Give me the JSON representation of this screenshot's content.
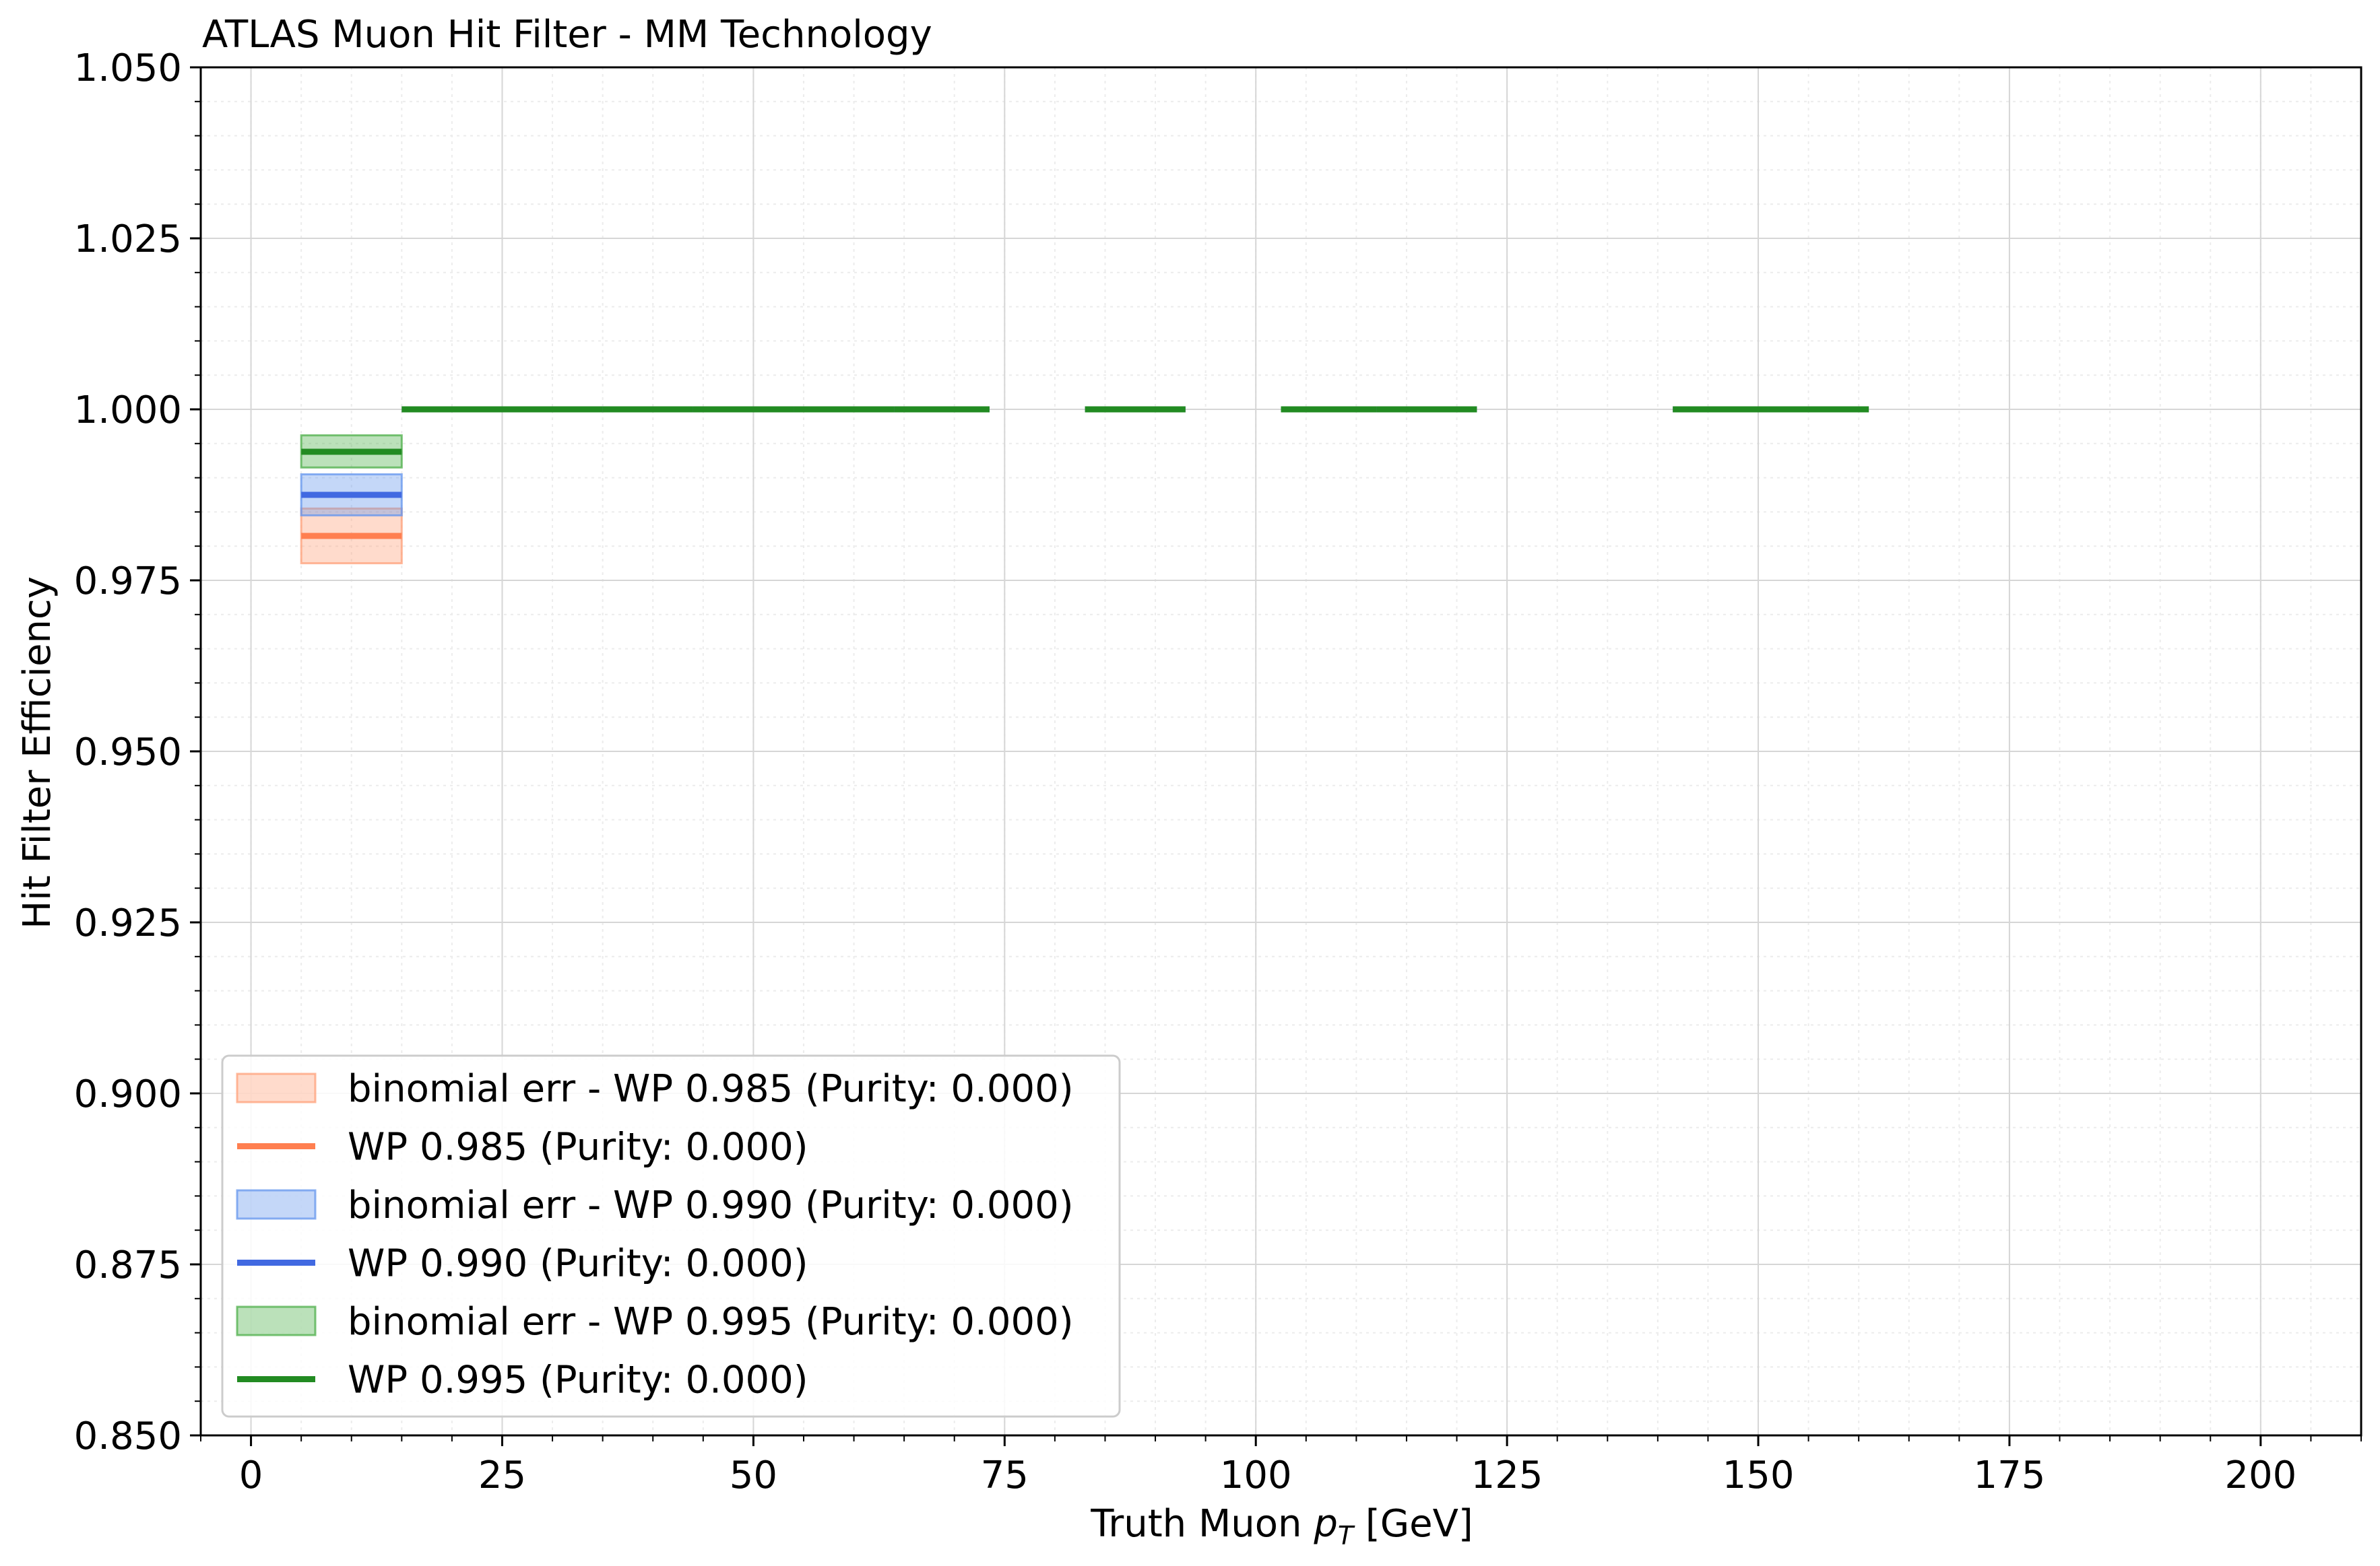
{
  "chart_data": {
    "type": "line",
    "title": "ATLAS Muon Hit Filter - MM Technology",
    "xlabel_main": "Truth Muon ",
    "xlabel_sym": "p",
    "xlabel_sub": "T",
    "xlabel_unit": " [GeV]",
    "ylabel": "Hit Filter Efficiency",
    "xlim": [
      -5,
      210
    ],
    "ylim": [
      0.85,
      1.05
    ],
    "grid": true,
    "legend_placement": "lower-left",
    "xticks": [
      0,
      25,
      50,
      75,
      100,
      125,
      150,
      175,
      200
    ],
    "xtick_labels": [
      "0",
      "25",
      "50",
      "75",
      "100",
      "125",
      "150",
      "175",
      "200"
    ],
    "yticks": [
      0.85,
      0.875,
      0.9,
      0.925,
      0.95,
      0.975,
      1.0,
      1.025,
      1.05
    ],
    "ytick_labels": [
      "0.850",
      "0.875",
      "0.900",
      "0.925",
      "0.950",
      "0.975",
      "1.000",
      "1.025",
      "1.050"
    ],
    "series": [
      {
        "name": "WP 0.985 (Purity: 0.000)",
        "band_name": "binomial err - WP 0.985 (Purity: 0.000)",
        "color": "#ff7f50",
        "band_color": "#ffa07a",
        "segments": [
          {
            "x0": 5,
            "x1": 15,
            "y": 0.9815,
            "err_lo": 0.9775,
            "err_hi": 0.9855
          },
          {
            "x0": 15,
            "x1": 25,
            "y": 1.0,
            "err_lo": 1.0,
            "err_hi": 1.0
          },
          {
            "x0": 25,
            "x1": 35,
            "y": 1.0,
            "err_lo": 1.0,
            "err_hi": 1.0
          },
          {
            "x0": 35,
            "x1": 44,
            "y": 1.0,
            "err_lo": 1.0,
            "err_hi": 1.0
          },
          {
            "x0": 44,
            "x1": 54,
            "y": 1.0,
            "err_lo": 1.0,
            "err_hi": 1.0
          },
          {
            "x0": 54,
            "x1": 64,
            "y": 1.0,
            "err_lo": 1.0,
            "err_hi": 1.0
          },
          {
            "x0": 64,
            "x1": 73.5,
            "y": 1.0,
            "err_lo": 1.0,
            "err_hi": 1.0
          },
          {
            "x0": 83,
            "x1": 93,
            "y": 1.0,
            "err_lo": 1.0,
            "err_hi": 1.0
          },
          {
            "x0": 102.5,
            "x1": 112,
            "y": 1.0,
            "err_lo": 1.0,
            "err_hi": 1.0
          },
          {
            "x0": 112,
            "x1": 122,
            "y": 1.0,
            "err_lo": 1.0,
            "err_hi": 1.0
          },
          {
            "x0": 141.5,
            "x1": 151,
            "y": 1.0,
            "err_lo": 1.0,
            "err_hi": 1.0
          },
          {
            "x0": 151,
            "x1": 161,
            "y": 1.0,
            "err_lo": 1.0,
            "err_hi": 1.0
          }
        ]
      },
      {
        "name": "WP 0.990 (Purity: 0.000)",
        "band_name": "binomial err - WP 0.990 (Purity: 0.000)",
        "color": "#4169e1",
        "band_color": "#6495ed",
        "segments": [
          {
            "x0": 5,
            "x1": 15,
            "y": 0.9875,
            "err_lo": 0.9845,
            "err_hi": 0.9905
          },
          {
            "x0": 15,
            "x1": 25,
            "y": 1.0,
            "err_lo": 1.0,
            "err_hi": 1.0
          },
          {
            "x0": 25,
            "x1": 35,
            "y": 1.0,
            "err_lo": 1.0,
            "err_hi": 1.0
          },
          {
            "x0": 35,
            "x1": 44,
            "y": 1.0,
            "err_lo": 1.0,
            "err_hi": 1.0
          },
          {
            "x0": 44,
            "x1": 54,
            "y": 1.0,
            "err_lo": 1.0,
            "err_hi": 1.0
          },
          {
            "x0": 54,
            "x1": 64,
            "y": 1.0,
            "err_lo": 1.0,
            "err_hi": 1.0
          },
          {
            "x0": 64,
            "x1": 73.5,
            "y": 1.0,
            "err_lo": 1.0,
            "err_hi": 1.0
          },
          {
            "x0": 83,
            "x1": 93,
            "y": 1.0,
            "err_lo": 1.0,
            "err_hi": 1.0
          },
          {
            "x0": 102.5,
            "x1": 112,
            "y": 1.0,
            "err_lo": 1.0,
            "err_hi": 1.0
          },
          {
            "x0": 112,
            "x1": 122,
            "y": 1.0,
            "err_lo": 1.0,
            "err_hi": 1.0
          },
          {
            "x0": 141.5,
            "x1": 151,
            "y": 1.0,
            "err_lo": 1.0,
            "err_hi": 1.0
          },
          {
            "x0": 151,
            "x1": 161,
            "y": 1.0,
            "err_lo": 1.0,
            "err_hi": 1.0
          }
        ]
      },
      {
        "name": "WP 0.995 (Purity: 0.000)",
        "band_name": "binomial err - WP 0.995 (Purity: 0.000)",
        "color": "#228b22",
        "band_color": "#4daf4a",
        "segments": [
          {
            "x0": 5,
            "x1": 15,
            "y": 0.9938,
            "err_lo": 0.9915,
            "err_hi": 0.9962
          },
          {
            "x0": 15,
            "x1": 25,
            "y": 1.0,
            "err_lo": 1.0,
            "err_hi": 1.0
          },
          {
            "x0": 25,
            "x1": 35,
            "y": 1.0,
            "err_lo": 1.0,
            "err_hi": 1.0
          },
          {
            "x0": 35,
            "x1": 44,
            "y": 1.0,
            "err_lo": 1.0,
            "err_hi": 1.0
          },
          {
            "x0": 44,
            "x1": 54,
            "y": 1.0,
            "err_lo": 1.0,
            "err_hi": 1.0
          },
          {
            "x0": 54,
            "x1": 64,
            "y": 1.0,
            "err_lo": 1.0,
            "err_hi": 1.0
          },
          {
            "x0": 64,
            "x1": 73.5,
            "y": 1.0,
            "err_lo": 1.0,
            "err_hi": 1.0
          },
          {
            "x0": 83,
            "x1": 93,
            "y": 1.0,
            "err_lo": 1.0,
            "err_hi": 1.0
          },
          {
            "x0": 102.5,
            "x1": 112,
            "y": 1.0,
            "err_lo": 1.0,
            "err_hi": 1.0
          },
          {
            "x0": 112,
            "x1": 122,
            "y": 1.0,
            "err_lo": 1.0,
            "err_hi": 1.0
          },
          {
            "x0": 141.5,
            "x1": 151,
            "y": 1.0,
            "err_lo": 1.0,
            "err_hi": 1.0
          },
          {
            "x0": 151,
            "x1": 161,
            "y": 1.0,
            "err_lo": 1.0,
            "err_hi": 1.0
          }
        ]
      }
    ]
  }
}
